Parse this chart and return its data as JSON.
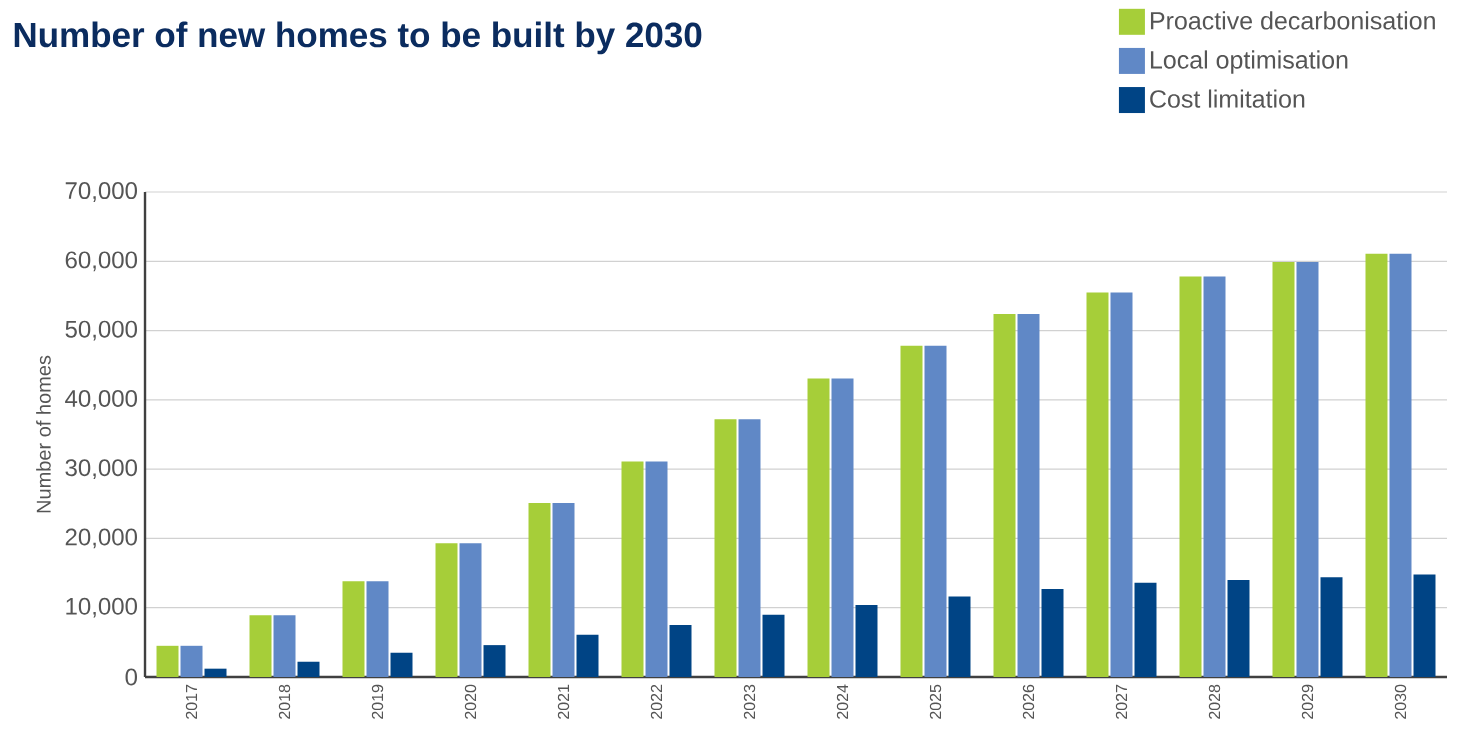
{
  "chart_data": {
    "type": "bar",
    "title": "Number of new homes to be built by 2030",
    "ylabel": "Number of homes",
    "categories": [
      "2017",
      "2018",
      "2019",
      "2020",
      "2021",
      "2022",
      "2023",
      "2024",
      "2025",
      "2026",
      "2027",
      "2028",
      "2029",
      "2030"
    ],
    "series": [
      {
        "name": "Proactive decarbonisation",
        "color": "#a6ce39",
        "values": [
          4500,
          8900,
          13800,
          19300,
          25100,
          31100,
          37200,
          43100,
          47800,
          52400,
          55500,
          57800,
          59900,
          61100
        ]
      },
      {
        "name": "Local optimisation",
        "color": "#6088c6",
        "values": [
          4500,
          8900,
          13800,
          19300,
          25100,
          31100,
          37200,
          43100,
          47800,
          52400,
          55500,
          57800,
          59900,
          61100
        ]
      },
      {
        "name": "Cost limitation",
        "color": "#004485",
        "values": [
          1200,
          2200,
          3500,
          4600,
          6100,
          7500,
          9000,
          10400,
          11600,
          12700,
          13600,
          14000,
          14400,
          14800
        ]
      }
    ],
    "ylim": [
      0,
      70000
    ],
    "yticks": [
      {
        "value": 0,
        "label": "0"
      },
      {
        "value": 10000,
        "label": "10,000"
      },
      {
        "value": 20000,
        "label": "20,000"
      },
      {
        "value": 30000,
        "label": "30,000"
      },
      {
        "value": 40000,
        "label": "40,000"
      },
      {
        "value": 50000,
        "label": "50,000"
      },
      {
        "value": 60000,
        "label": "60,000"
      },
      {
        "value": 70000,
        "label": "70,000"
      }
    ],
    "grid": "y",
    "legend": "top right"
  }
}
